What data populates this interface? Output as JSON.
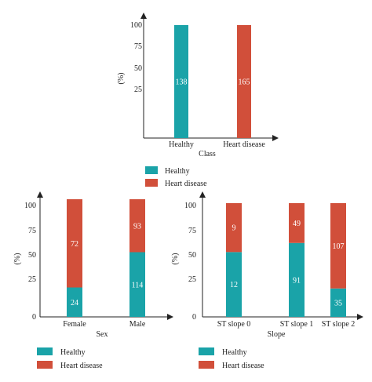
{
  "colors": {
    "healthy": "#1aa3a8",
    "heart_disease": "#d14f3a",
    "axis": "#222222"
  },
  "chart_data": [
    {
      "type": "bar",
      "title": "",
      "xlabel": "Class",
      "ylabel": "(%)",
      "ylim": [
        0,
        100
      ],
      "yticks": [
        "100",
        "75",
        "50",
        "25"
      ],
      "categories": [
        "Healthy",
        "Heart disease"
      ],
      "series": [
        {
          "name": "Healthy",
          "values": [
            100,
            0
          ],
          "labels": [
            "138",
            ""
          ]
        },
        {
          "name": "Heart disease",
          "values": [
            0,
            100
          ],
          "labels": [
            "",
            "165"
          ]
        }
      ],
      "legend": [
        "Healthy",
        "Heart disease"
      ],
      "legend_position": "bottom"
    },
    {
      "type": "bar",
      "stacked": true,
      "title": "",
      "xlabel": "Sex",
      "ylabel": "(%)",
      "ylim": [
        0,
        100
      ],
      "yticks": [
        "100",
        "75",
        "50",
        "25",
        "0"
      ],
      "categories": [
        "Female",
        "Male"
      ],
      "series": [
        {
          "name": "Healthy",
          "values": [
            25,
            55
          ],
          "labels": [
            "24",
            "114"
          ]
        },
        {
          "name": "Heart disease",
          "values": [
            75,
            45
          ],
          "labels": [
            "72",
            "93"
          ]
        }
      ],
      "legend": [
        "Healthy",
        "Heart disease"
      ],
      "legend_position": "bottom"
    },
    {
      "type": "bar",
      "stacked": true,
      "title": "",
      "xlabel": "Slope",
      "ylabel": "(%)",
      "ylim": [
        0,
        100
      ],
      "yticks": [
        "100",
        "75",
        "50",
        "25",
        "0"
      ],
      "categories": [
        "ST slope 0",
        "ST slope 1",
        "ST slope 2"
      ],
      "series": [
        {
          "name": "Healthy",
          "values": [
            57,
            65,
            25
          ],
          "labels": [
            "12",
            "91",
            "35"
          ]
        },
        {
          "name": "Heart disease",
          "values": [
            43,
            35,
            75
          ],
          "labels": [
            "9",
            "49",
            "107"
          ]
        }
      ],
      "legend": [
        "Healthy",
        "Heart disease"
      ],
      "legend_position": "bottom"
    }
  ]
}
